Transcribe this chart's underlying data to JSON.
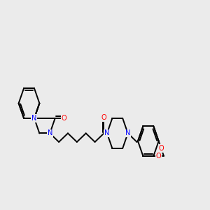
{
  "background_color": "#ebebeb",
  "bond_color": "#000000",
  "atom_colors": {
    "N": "#0000ff",
    "O": "#ff0000",
    "C": "#000000"
  },
  "line_width": 1.4,
  "figsize": [
    3.0,
    3.0
  ],
  "dpi": 100
}
